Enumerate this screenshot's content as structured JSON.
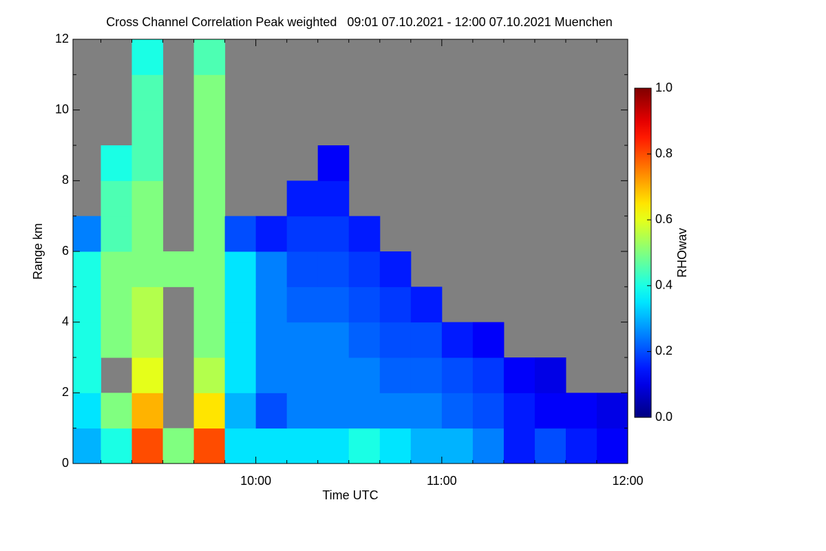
{
  "chart_data": {
    "type": "heatmap",
    "title": "Cross Channel Correlation Peak weighted   09:01 07.10.2021 - 12:00 07.10.2021 Muenchen",
    "x_label": "Time UTC",
    "y_label": "Range km",
    "colorbar_label": "RHOwav",
    "colormap": "jet",
    "nodata_color": "#808080",
    "xlim": [
      9.0167,
      12.0
    ],
    "ylim": [
      0,
      12
    ],
    "clim": [
      0,
      1
    ],
    "xticks": [
      {
        "value": 10,
        "label": "10:00"
      },
      {
        "value": 11,
        "label": "11:00"
      },
      {
        "value": 12,
        "label": "12:00"
      }
    ],
    "xminorticks": [
      9.1667,
      9.3333,
      9.5,
      9.6667,
      9.8333,
      10.1667,
      10.3333,
      10.5,
      10.6667,
      10.8333,
      11.1667,
      11.3333,
      11.5,
      11.6667,
      11.8333
    ],
    "yticks": [
      0,
      2,
      4,
      6,
      8,
      10,
      12
    ],
    "yminorticks": [
      1,
      3,
      5,
      7,
      9,
      11
    ],
    "cticks": [
      {
        "value": 0,
        "label": "0.0"
      },
      {
        "value": 0.2,
        "label": "0.2"
      },
      {
        "value": 0.4,
        "label": "0.4"
      },
      {
        "value": 0.6,
        "label": "0.6"
      },
      {
        "value": 0.8,
        "label": "0.8"
      },
      {
        "value": 1,
        "label": "1.0"
      }
    ],
    "xbins": [
      9.0167,
      9.1667,
      9.3333,
      9.5,
      9.6667,
      9.8333,
      10,
      10.1667,
      10.3333,
      10.5,
      10.6667,
      10.8333,
      11,
      11.1667,
      11.3333,
      11.5,
      11.6667,
      11.8333,
      12
    ],
    "ybins": [
      0,
      1,
      2,
      3,
      4,
      5,
      6,
      7,
      8,
      9,
      10,
      11,
      12
    ],
    "z": [
      [
        0.3,
        0.4,
        0.8,
        0.5,
        0.8,
        0.35,
        0.35,
        0.35,
        0.35,
        0.4,
        0.35,
        0.3,
        0.3,
        0.25,
        0.15,
        0.2,
        0.15,
        0.12
      ],
      [
        0.35,
        0.5,
        0.7,
        null,
        0.65,
        0.3,
        0.2,
        0.25,
        0.25,
        0.25,
        0.25,
        0.25,
        0.22,
        0.2,
        0.15,
        0.12,
        0.12,
        0.1
      ],
      [
        0.4,
        null,
        0.6,
        null,
        0.55,
        0.35,
        0.25,
        0.25,
        0.25,
        0.25,
        0.22,
        0.22,
        0.2,
        0.18,
        0.12,
        0.1,
        null,
        null
      ],
      [
        0.4,
        0.5,
        0.55,
        null,
        0.5,
        0.35,
        0.25,
        0.25,
        0.25,
        0.22,
        0.2,
        0.2,
        0.15,
        0.12,
        null,
        null,
        null,
        null
      ],
      [
        0.4,
        0.5,
        0.55,
        null,
        0.5,
        0.35,
        0.25,
        0.22,
        0.22,
        0.2,
        0.18,
        0.15,
        null,
        null,
        null,
        null,
        null,
        null
      ],
      [
        0.4,
        0.5,
        0.5,
        0.5,
        0.5,
        0.35,
        0.25,
        0.2,
        0.2,
        0.18,
        0.15,
        null,
        null,
        null,
        null,
        null,
        null,
        null
      ],
      [
        0.25,
        0.45,
        0.5,
        null,
        0.5,
        0.2,
        0.15,
        0.18,
        0.18,
        0.15,
        null,
        null,
        null,
        null,
        null,
        null,
        null,
        null
      ],
      [
        null,
        0.45,
        0.5,
        null,
        0.5,
        null,
        null,
        0.15,
        0.15,
        null,
        null,
        null,
        null,
        null,
        null,
        null,
        null,
        null
      ],
      [
        null,
        0.4,
        0.45,
        null,
        0.5,
        null,
        null,
        null,
        0.12,
        null,
        null,
        null,
        null,
        null,
        null,
        null,
        null,
        null
      ],
      [
        null,
        null,
        0.45,
        null,
        0.5,
        null,
        null,
        null,
        null,
        null,
        null,
        null,
        null,
        null,
        null,
        null,
        null,
        null
      ],
      [
        null,
        null,
        0.45,
        null,
        0.5,
        null,
        null,
        null,
        null,
        null,
        null,
        null,
        null,
        null,
        null,
        null,
        null,
        null
      ],
      [
        null,
        null,
        0.4,
        null,
        0.45,
        null,
        null,
        null,
        null,
        null,
        null,
        null,
        null,
        null,
        null,
        null,
        null,
        null
      ]
    ]
  }
}
